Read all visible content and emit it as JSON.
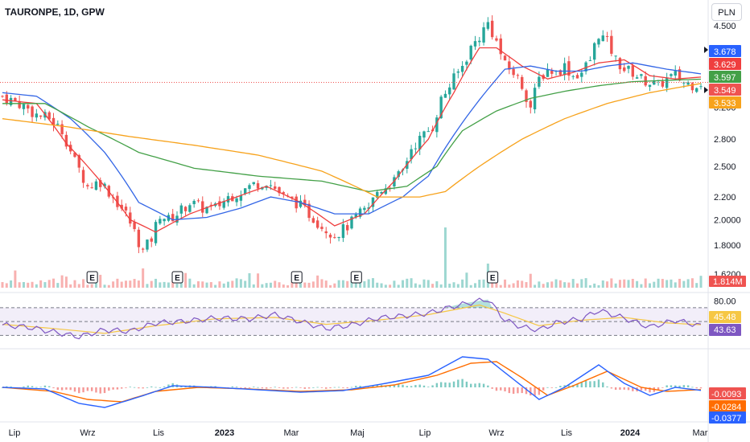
{
  "symbol_title": "TAURONPE, 1D, GPW",
  "currency": "PLN",
  "colors": {
    "up": "#26a69a",
    "down": "#ef5350",
    "ma_fast": "#ef3e3e",
    "ma_mid": "#3366e6",
    "ma_slow": "#43a047",
    "ma_long": "#f7a21b",
    "rsi": "#7e57c2",
    "rsi_ma": "#f6c744",
    "macd": "#2962ff",
    "signal": "#ff6d00"
  },
  "chart_data": [
    {
      "type": "candlestick",
      "panel": "price",
      "title": "TAURONPE, 1D, GPW",
      "x": [
        "Lip",
        "Wrz",
        "Lis",
        "2023",
        "Mar",
        "Maj",
        "Lip",
        "Wrz",
        "Lis",
        "2024",
        "Mar"
      ],
      "y_ticks": [
        "4.500",
        "3.200",
        "2.800",
        "2.500",
        "2.200",
        "2.0000",
        "1.8000",
        "1.6200"
      ],
      "ylim": [
        1.6,
        4.65
      ],
      "scale": "log",
      "close_path": [
        [
          0,
          3.35
        ],
        [
          4,
          3.25
        ],
        [
          8,
          3.1
        ],
        [
          11,
          3.05
        ],
        [
          14,
          2.9
        ],
        [
          17,
          2.55
        ],
        [
          20,
          2.3
        ],
        [
          23,
          2.35
        ],
        [
          26,
          2.2
        ],
        [
          29,
          2.05
        ],
        [
          31,
          1.9
        ],
        [
          33,
          1.75
        ],
        [
          35,
          1.85
        ],
        [
          37,
          2.05
        ],
        [
          39,
          2.0
        ],
        [
          41,
          2.05
        ],
        [
          44,
          2.15
        ],
        [
          47,
          2.1
        ],
        [
          50,
          2.1
        ],
        [
          53,
          2.2
        ],
        [
          56,
          2.25
        ],
        [
          59,
          2.32
        ],
        [
          62,
          2.35
        ],
        [
          64,
          2.28
        ],
        [
          66,
          2.2
        ],
        [
          69,
          2.15
        ],
        [
          72,
          2.05
        ],
        [
          75,
          1.95
        ],
        [
          78,
          1.88
        ],
        [
          80,
          1.92
        ],
        [
          82,
          1.98
        ],
        [
          84,
          2.05
        ],
        [
          86,
          2.1
        ],
        [
          88,
          2.25
        ],
        [
          90,
          2.3
        ],
        [
          92,
          2.35
        ],
        [
          94,
          2.45
        ],
        [
          96,
          2.7
        ],
        [
          99,
          2.85
        ],
        [
          101,
          2.95
        ],
        [
          103,
          3.3
        ],
        [
          106,
          3.6
        ],
        [
          108,
          3.8
        ],
        [
          110,
          4.1
        ],
        [
          112,
          4.3
        ],
        [
          114,
          4.55
        ],
        [
          116,
          4.2
        ],
        [
          118,
          3.8
        ],
        [
          120,
          3.7
        ],
        [
          122,
          3.5
        ],
        [
          124,
          3.2
        ],
        [
          126,
          3.6
        ],
        [
          128,
          3.75
        ],
        [
          130,
          3.7
        ],
        [
          132,
          3.8
        ],
        [
          134,
          3.65
        ],
        [
          136,
          3.7
        ],
        [
          138,
          3.9
        ],
        [
          140,
          4.35
        ],
        [
          142,
          4.2
        ],
        [
          144,
          3.9
        ],
        [
          146,
          3.75
        ],
        [
          148,
          3.7
        ],
        [
          150,
          3.6
        ],
        [
          152,
          3.55
        ],
        [
          154,
          3.5
        ],
        [
          156,
          3.6
        ],
        [
          158,
          3.65
        ],
        [
          160,
          3.55
        ],
        [
          162,
          3.52
        ],
        [
          164,
          3.549
        ]
      ],
      "moving_averages": [
        {
          "values": [
            [
              0,
              3.3
            ],
            [
              8,
              3.25
            ],
            [
              15,
              2.75
            ],
            [
              22,
              2.4
            ],
            [
              30,
              2.0
            ],
            [
              36,
              1.9
            ],
            [
              44,
              2.05
            ],
            [
              55,
              2.2
            ],
            [
              62,
              2.3
            ],
            [
              70,
              2.15
            ],
            [
              78,
              1.95
            ],
            [
              85,
              2.05
            ],
            [
              92,
              2.35
            ],
            [
              100,
              2.8
            ],
            [
              106,
              3.4
            ],
            [
              112,
              4.1
            ],
            [
              116,
              4.1
            ],
            [
              122,
              3.8
            ],
            [
              128,
              3.6
            ],
            [
              134,
              3.7
            ],
            [
              140,
              3.85
            ],
            [
              146,
              3.9
            ],
            [
              152,
              3.65
            ],
            [
              158,
              3.6
            ],
            [
              164,
              3.629
            ]
          ]
        },
        {
          "values": [
            [
              0,
              3.4
            ],
            [
              8,
              3.35
            ],
            [
              16,
              3.05
            ],
            [
              24,
              2.65
            ],
            [
              32,
              2.15
            ],
            [
              40,
              2.0
            ],
            [
              48,
              2.02
            ],
            [
              56,
              2.1
            ],
            [
              63,
              2.2
            ],
            [
              70,
              2.15
            ],
            [
              78,
              2.05
            ],
            [
              86,
              2.05
            ],
            [
              94,
              2.2
            ],
            [
              100,
              2.4
            ],
            [
              106,
              2.85
            ],
            [
              112,
              3.3
            ],
            [
              118,
              3.75
            ],
            [
              124,
              3.8
            ],
            [
              130,
              3.72
            ],
            [
              136,
              3.72
            ],
            [
              142,
              3.8
            ],
            [
              148,
              3.85
            ],
            [
              156,
              3.75
            ],
            [
              164,
              3.678
            ]
          ]
        },
        {
          "values": [
            [
              0,
              3.25
            ],
            [
              10,
              3.25
            ],
            [
              20,
              2.95
            ],
            [
              32,
              2.65
            ],
            [
              45,
              2.48
            ],
            [
              60,
              2.4
            ],
            [
              75,
              2.35
            ],
            [
              86,
              2.25
            ],
            [
              95,
              2.3
            ],
            [
              102,
              2.5
            ],
            [
              108,
              2.9
            ],
            [
              116,
              3.15
            ],
            [
              124,
              3.32
            ],
            [
              132,
              3.42
            ],
            [
              140,
              3.5
            ],
            [
              148,
              3.56
            ],
            [
              156,
              3.58
            ],
            [
              164,
              3.597
            ]
          ]
        },
        {
          "values": [
            [
              0,
              3.05
            ],
            [
              15,
              2.95
            ],
            [
              30,
              2.83
            ],
            [
              45,
              2.73
            ],
            [
              60,
              2.62
            ],
            [
              75,
              2.45
            ],
            [
              88,
              2.2
            ],
            [
              98,
              2.2
            ],
            [
              104,
              2.25
            ],
            [
              112,
              2.5
            ],
            [
              122,
              2.8
            ],
            [
              132,
              3.05
            ],
            [
              142,
              3.25
            ],
            [
              152,
              3.4
            ],
            [
              164,
              3.533
            ]
          ]
        }
      ],
      "price_labels": [
        "3.678",
        "3.629",
        "3.597",
        "3.549",
        "3.533"
      ],
      "earnings_markers": [
        "E",
        "E",
        "E",
        "E",
        "E"
      ]
    },
    {
      "type": "bar",
      "panel": "volume",
      "value_label": "1.814M"
    },
    {
      "type": "line",
      "panel": "rsi",
      "y_ticks": [
        "80.00"
      ],
      "labels": [
        "45.48",
        "43.63"
      ],
      "ylim": [
        20,
        85
      ],
      "bands": [
        70,
        50,
        30
      ],
      "values": [
        [
          0,
          45
        ],
        [
          6,
          42
        ],
        [
          12,
          35
        ],
        [
          18,
          28
        ],
        [
          24,
          38
        ],
        [
          30,
          36
        ],
        [
          36,
          48
        ],
        [
          42,
          50
        ],
        [
          50,
          55
        ],
        [
          58,
          54
        ],
        [
          64,
          60
        ],
        [
          70,
          50
        ],
        [
          76,
          40
        ],
        [
          82,
          45
        ],
        [
          88,
          55
        ],
        [
          94,
          58
        ],
        [
          100,
          62
        ],
        [
          106,
          72
        ],
        [
          112,
          80
        ],
        [
          114,
          82
        ],
        [
          118,
          52
        ],
        [
          122,
          42
        ],
        [
          126,
          38
        ],
        [
          130,
          48
        ],
        [
          136,
          54
        ],
        [
          140,
          66
        ],
        [
          146,
          55
        ],
        [
          152,
          42
        ],
        [
          158,
          52
        ],
        [
          164,
          43.63
        ]
      ],
      "ma_values": [
        [
          0,
          46
        ],
        [
          12,
          40
        ],
        [
          24,
          33
        ],
        [
          36,
          44
        ],
        [
          50,
          54
        ],
        [
          64,
          56
        ],
        [
          76,
          46
        ],
        [
          88,
          52
        ],
        [
          100,
          60
        ],
        [
          112,
          74
        ],
        [
          118,
          62
        ],
        [
          126,
          44
        ],
        [
          136,
          52
        ],
        [
          146,
          56
        ],
        [
          156,
          48
        ],
        [
          164,
          45.48
        ]
      ]
    },
    {
      "type": "line",
      "panel": "macd",
      "labels": [
        "-0.0093",
        "-0.0284",
        "-0.0377"
      ],
      "ylim": [
        -0.38,
        0.42
      ],
      "values": [
        [
          0,
          0.0
        ],
        [
          10,
          -0.02
        ],
        [
          18,
          -0.2
        ],
        [
          24,
          -0.25
        ],
        [
          32,
          -0.12
        ],
        [
          40,
          0.02
        ],
        [
          50,
          0.0
        ],
        [
          60,
          -0.03
        ],
        [
          70,
          -0.06
        ],
        [
          80,
          -0.04
        ],
        [
          90,
          0.05
        ],
        [
          100,
          0.15
        ],
        [
          108,
          0.38
        ],
        [
          114,
          0.35
        ],
        [
          120,
          0.1
        ],
        [
          126,
          -0.15
        ],
        [
          132,
          0.0
        ],
        [
          140,
          0.28
        ],
        [
          146,
          0.05
        ],
        [
          152,
          -0.1
        ],
        [
          158,
          0.0
        ],
        [
          164,
          -0.0377
        ]
      ],
      "signal_values": [
        [
          0,
          0.0
        ],
        [
          12,
          -0.05
        ],
        [
          20,
          -0.15
        ],
        [
          28,
          -0.18
        ],
        [
          36,
          -0.05
        ],
        [
          46,
          0.0
        ],
        [
          58,
          -0.02
        ],
        [
          70,
          -0.05
        ],
        [
          82,
          -0.03
        ],
        [
          92,
          0.03
        ],
        [
          102,
          0.15
        ],
        [
          110,
          0.3
        ],
        [
          116,
          0.32
        ],
        [
          122,
          0.12
        ],
        [
          128,
          -0.1
        ],
        [
          134,
          0.02
        ],
        [
          142,
          0.2
        ],
        [
          150,
          0.0
        ],
        [
          156,
          -0.05
        ],
        [
          164,
          -0.0284
        ]
      ],
      "histogram_label": "-0.0093"
    }
  ]
}
